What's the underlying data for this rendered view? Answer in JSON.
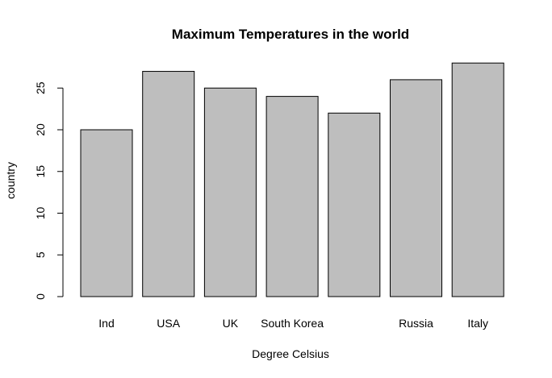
{
  "chart_data": {
    "type": "bar",
    "title": "Maximum Temperatures in the world",
    "xlabel": "Degree Celsius",
    "ylabel": "country",
    "categories": [
      "Ind",
      "USA",
      "UK",
      "South Korea",
      "",
      "Russia",
      "Italy"
    ],
    "values": [
      20,
      27,
      25,
      24,
      22,
      26,
      28
    ],
    "ylim": [
      0,
      28
    ],
    "yticks": [
      "0",
      "5",
      "10",
      "15",
      "20",
      "25"
    ],
    "grid": false,
    "bar_color": "#bebebe",
    "bar_border_color": "#000000"
  }
}
